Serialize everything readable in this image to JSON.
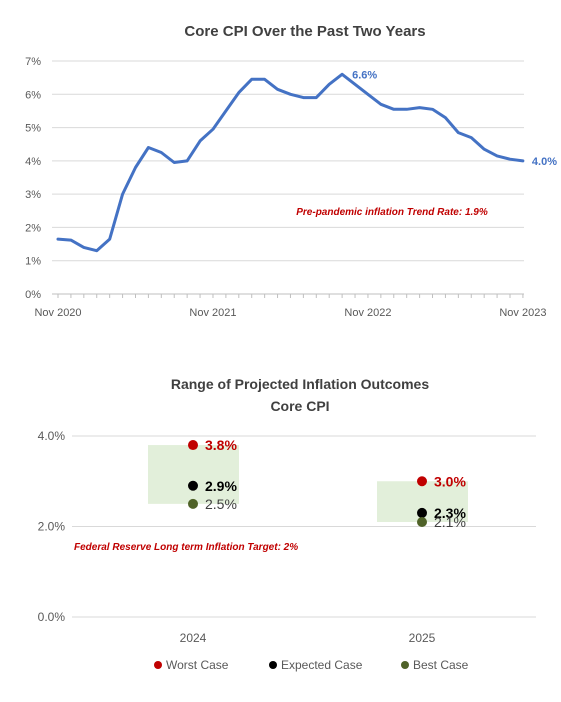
{
  "chart_data": [
    {
      "type": "line",
      "title": "Core CPI Over the Past Two Years",
      "ylim": [
        0,
        7
      ],
      "y_ticks": [
        "0%",
        "1%",
        "2%",
        "3%",
        "4%",
        "5%",
        "6%",
        "7%"
      ],
      "x_ticks": [
        "Nov 2020",
        "Nov 2021",
        "Nov 2022",
        "Nov 2023"
      ],
      "grid": "horizontal",
      "series": [
        {
          "color": "#4472c4",
          "x": [
            "2020-11",
            "2020-12",
            "2021-01",
            "2021-02",
            "2021-03",
            "2021-04",
            "2021-05",
            "2021-06",
            "2021-07",
            "2021-08",
            "2021-09",
            "2021-10",
            "2021-11",
            "2021-12",
            "2022-01",
            "2022-02",
            "2022-03",
            "2022-04",
            "2022-05",
            "2022-06",
            "2022-07",
            "2022-08",
            "2022-09",
            "2022-10",
            "2022-11",
            "2022-12",
            "2023-01",
            "2023-02",
            "2023-03",
            "2023-04",
            "2023-05",
            "2023-06",
            "2023-07",
            "2023-08",
            "2023-09",
            "2023-10",
            "2023-11"
          ],
          "values": [
            1.65,
            1.62,
            1.4,
            1.3,
            1.65,
            3.0,
            3.8,
            4.4,
            4.25,
            3.95,
            4.0,
            4.6,
            4.95,
            5.5,
            6.05,
            6.45,
            6.45,
            6.15,
            6.0,
            5.9,
            5.9,
            6.3,
            6.6,
            6.3,
            6.0,
            5.7,
            5.55,
            5.55,
            5.6,
            5.55,
            5.3,
            4.85,
            4.7,
            4.35,
            4.15,
            4.05,
            4.0
          ]
        }
      ],
      "point_labels": [
        {
          "x": "2022-09",
          "text": "6.6%"
        },
        {
          "x": "2023-11",
          "text": "4.0%"
        }
      ],
      "annotation": "Pre-pandemic inflation Trend Rate:  1.9%"
    },
    {
      "type": "scatter",
      "title": [
        "Range of Projected Inflation Outcomes",
        "Core CPI"
      ],
      "ylim": [
        0,
        4
      ],
      "y_ticks": [
        "0.0%",
        "2.0%",
        "4.0%"
      ],
      "categories": [
        "2024",
        "2025"
      ],
      "grid": "horizontal",
      "ranges": [
        {
          "category": "2024",
          "low": 2.5,
          "high": 3.8,
          "color": "#e2efda"
        },
        {
          "category": "2025",
          "low": 2.1,
          "high": 3.0,
          "color": "#e2efda"
        }
      ],
      "series": [
        {
          "name": "Worst Case",
          "color": "#c00000",
          "values": [
            3.8,
            3.0
          ],
          "labels": [
            "3.8%",
            "3.0%"
          ]
        },
        {
          "name": "Expected Case",
          "color": "#000000",
          "values": [
            2.9,
            2.3
          ],
          "labels": [
            "2.9%",
            "2.3%"
          ]
        },
        {
          "name": "Best Case",
          "color": "#4f6228",
          "values": [
            2.5,
            2.1
          ],
          "labels": [
            "2.5%",
            "2.1%"
          ]
        }
      ],
      "legend": "bottom",
      "annotation": "Federal Reserve Long term Inflation Target:  2%"
    }
  ]
}
